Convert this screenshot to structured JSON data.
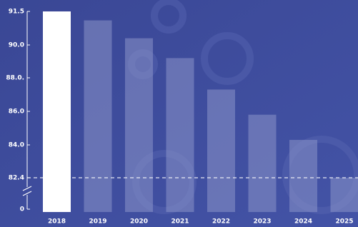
{
  "chart_data": {
    "type": "bar",
    "categories": [
      "2018",
      "2019",
      "2020",
      "2021",
      "2022",
      "2023",
      "2024",
      "2025"
    ],
    "values": [
      91.5,
      91.1,
      90.3,
      89.2,
      87.3,
      85.8,
      84.3,
      82.4
    ],
    "color": "#8b94c8",
    "highlight_color": "#ffffff",
    "ylim": [
      0,
      91.5
    ],
    "yticks": [
      0,
      82.4,
      {
        "value": 84,
        "label": "84.0"
      },
      {
        "value": 86,
        "label": "86.0"
      },
      {
        "value": 88,
        "label": "88.0."
      },
      {
        "value": 90,
        "label": "90.0"
      },
      91.5
    ],
    "axis_break": true,
    "reference_tick": 82.4
  }
}
